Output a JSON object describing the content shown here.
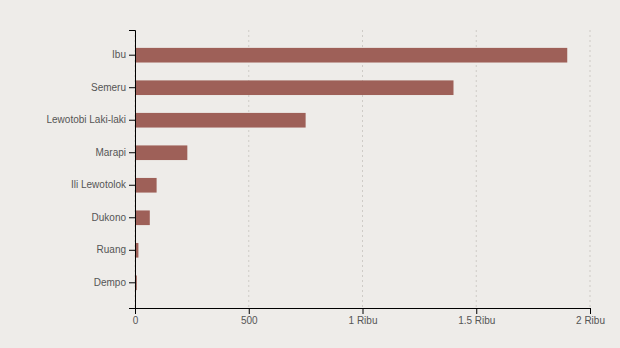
{
  "chart_data": {
    "type": "bar",
    "orientation": "horizontal",
    "categories": [
      "Dempo",
      "Ruang",
      "Dukono",
      "Ili Lewotolok",
      "Marapi",
      "Lewotobi Laki-laki",
      "Semeru",
      "Ibu"
    ],
    "values": [
      8,
      15,
      65,
      95,
      230,
      750,
      1400,
      1900
    ],
    "color": "#9e6058",
    "xlim": [
      0,
      2000
    ],
    "xticks": [
      0,
      500,
      {
        "value": 1000,
        "label": "1 Ribu"
      },
      {
        "value": 1500,
        "label": "1.5 Ribu"
      },
      {
        "value": 2000,
        "label": "2 Ribu"
      }
    ],
    "grid": true
  }
}
